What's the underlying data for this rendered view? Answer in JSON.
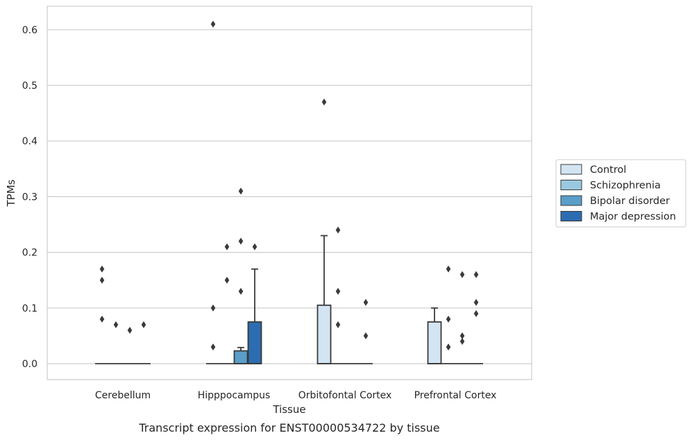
{
  "chart_data": {
    "type": "box",
    "title": "",
    "caption": "Transcript expression for ENST00000534722 by tissue",
    "xlabel": "Tissue",
    "ylabel": "TPMs",
    "ylim": [
      -0.03,
      0.64
    ],
    "yticks": [
      0.0,
      0.1,
      0.2,
      0.3,
      0.4,
      0.5,
      0.6
    ],
    "ytick_labels": [
      "0.0",
      "0.1",
      "0.2",
      "0.3",
      "0.4",
      "0.5",
      "0.6"
    ],
    "grid": true,
    "legend_position": "right",
    "categories": [
      "Cerebellum",
      "Hipppocampus",
      "Orbitofontal Cortex",
      "Prefrontal Cortex"
    ],
    "series": [
      {
        "name": "Control",
        "color": "#d3e4f3",
        "boxes": [
          {
            "q1": 0,
            "median": 0,
            "q3": 0,
            "whisker_low": 0,
            "whisker_high": 0,
            "outliers": [
              0.17,
              0.15,
              0.08
            ]
          },
          {
            "q1": 0,
            "median": 0,
            "q3": 0,
            "whisker_low": 0,
            "whisker_high": 0,
            "outliers": [
              0.61,
              0.1,
              0.03
            ]
          },
          {
            "q1": 0,
            "median": 0,
            "q3": 0.105,
            "whisker_low": 0,
            "whisker_high": 0.23,
            "outliers": [
              0.47
            ]
          },
          {
            "q1": 0,
            "median": 0,
            "q3": 0.075,
            "whisker_low": 0,
            "whisker_high": 0.1,
            "outliers": []
          }
        ]
      },
      {
        "name": "Schizophrenia",
        "color": "#9ac8e0",
        "boxes": [
          {
            "q1": 0,
            "median": 0,
            "q3": 0,
            "whisker_low": 0,
            "whisker_high": 0,
            "outliers": [
              0.07
            ]
          },
          {
            "q1": 0,
            "median": 0,
            "q3": 0,
            "whisker_low": 0,
            "whisker_high": 0,
            "outliers": [
              0.21,
              0.15
            ]
          },
          {
            "q1": 0,
            "median": 0,
            "q3": 0,
            "whisker_low": 0,
            "whisker_high": 0,
            "outliers": [
              0.24,
              0.13,
              0.07
            ]
          },
          {
            "q1": 0,
            "median": 0,
            "q3": 0,
            "whisker_low": 0,
            "whisker_high": 0,
            "outliers": [
              0.17,
              0.08,
              0.03
            ]
          }
        ]
      },
      {
        "name": "Bipolar disorder",
        "color": "#5a9ec9",
        "boxes": [
          {
            "q1": 0,
            "median": 0,
            "q3": 0,
            "whisker_low": 0,
            "whisker_high": 0,
            "outliers": [
              0.06
            ]
          },
          {
            "q1": 0,
            "median": 0,
            "q3": 0.023,
            "whisker_low": 0,
            "whisker_high": 0.029,
            "outliers": [
              0.31,
              0.22,
              0.13
            ]
          },
          {
            "q1": 0,
            "median": 0,
            "q3": 0,
            "whisker_low": 0,
            "whisker_high": 0,
            "outliers": []
          },
          {
            "q1": 0,
            "median": 0,
            "q3": 0,
            "whisker_low": 0,
            "whisker_high": 0,
            "outliers": [
              0.16,
              0.05,
              0.04
            ]
          }
        ]
      },
      {
        "name": "Major depression",
        "color": "#2c6cb0",
        "boxes": [
          {
            "q1": 0,
            "median": 0,
            "q3": 0,
            "whisker_low": 0,
            "whisker_high": 0,
            "outliers": [
              0.07
            ]
          },
          {
            "q1": 0,
            "median": 0,
            "q3": 0.075,
            "whisker_low": 0,
            "whisker_high": 0.17,
            "outliers": [
              0.21
            ]
          },
          {
            "q1": 0,
            "median": 0,
            "q3": 0,
            "whisker_low": 0,
            "whisker_high": 0,
            "outliers": [
              0.11,
              0.05
            ]
          },
          {
            "q1": 0,
            "median": 0,
            "q3": 0,
            "whisker_low": 0,
            "whisker_high": 0,
            "outliers": [
              0.16,
              0.11,
              0.09
            ]
          }
        ]
      }
    ]
  }
}
